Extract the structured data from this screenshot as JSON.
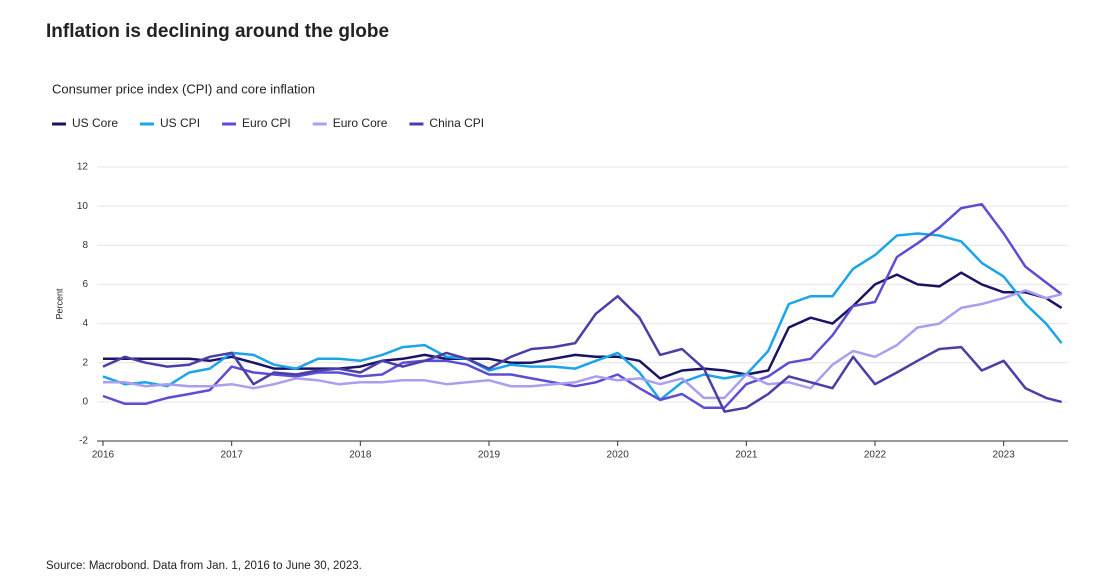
{
  "chart_data": {
    "type": "line",
    "title": "Inflation is declining around the globe",
    "subtitle": "Consumer price index (CPI) and core inflation",
    "y_label": "Percent",
    "source": "Source: Macrobond. Data from Jan. 1, 2016 to June 30, 2023.",
    "x": [
      2016,
      2016.17,
      2016.33,
      2016.5,
      2016.67,
      2016.83,
      2017,
      2017.17,
      2017.33,
      2017.5,
      2017.67,
      2017.83,
      2018,
      2018.17,
      2018.33,
      2018.5,
      2018.67,
      2018.83,
      2019,
      2019.17,
      2019.33,
      2019.5,
      2019.67,
      2019.83,
      2020,
      2020.17,
      2020.33,
      2020.5,
      2020.67,
      2020.83,
      2021,
      2021.17,
      2021.33,
      2021.5,
      2021.67,
      2021.83,
      2022,
      2022.17,
      2022.33,
      2022.5,
      2022.67,
      2022.83,
      2023,
      2023.17,
      2023.33,
      2023.45
    ],
    "xlim": [
      2016,
      2023.5
    ],
    "xticks": [
      2016,
      2017,
      2018,
      2019,
      2020,
      2021,
      2022,
      2023
    ],
    "ylim": [
      -2,
      12
    ],
    "yticks": [
      -2,
      0,
      2,
      4,
      6,
      8,
      10,
      12
    ],
    "grid": true,
    "series": [
      {
        "name": "US Core",
        "color": "#1b1464",
        "values": [
          2.2,
          2.2,
          2.2,
          2.2,
          2.2,
          2.1,
          2.3,
          2.0,
          1.7,
          1.7,
          1.7,
          1.7,
          1.8,
          2.1,
          2.2,
          2.4,
          2.2,
          2.2,
          2.2,
          2.0,
          2.0,
          2.2,
          2.4,
          2.3,
          2.3,
          2.1,
          1.2,
          1.6,
          1.7,
          1.6,
          1.4,
          1.6,
          3.8,
          4.3,
          4.0,
          4.9,
          6.0,
          6.5,
          6.0,
          5.9,
          6.6,
          6.0,
          5.6,
          5.6,
          5.3,
          4.8
        ]
      },
      {
        "name": "US CPI",
        "color": "#1ca4e8",
        "values": [
          1.3,
          0.9,
          1.0,
          0.8,
          1.5,
          1.7,
          2.5,
          2.4,
          1.9,
          1.7,
          2.2,
          2.2,
          2.1,
          2.4,
          2.8,
          2.9,
          2.3,
          2.2,
          1.6,
          1.9,
          1.8,
          1.8,
          1.7,
          2.1,
          2.5,
          1.5,
          0.1,
          1.0,
          1.4,
          1.2,
          1.4,
          2.6,
          5.0,
          5.4,
          5.4,
          6.8,
          7.5,
          8.5,
          8.6,
          8.5,
          8.2,
          7.1,
          6.4,
          5.0,
          4.0,
          3.0
        ]
      },
      {
        "name": "Euro CPI",
        "color": "#5b4ed4",
        "values": [
          0.3,
          -0.1,
          -0.1,
          0.2,
          0.4,
          0.6,
          1.8,
          1.5,
          1.4,
          1.3,
          1.5,
          1.5,
          1.3,
          1.4,
          2.0,
          2.1,
          2.1,
          1.9,
          1.4,
          1.4,
          1.2,
          1.0,
          0.8,
          1.0,
          1.4,
          0.7,
          0.1,
          0.4,
          -0.3,
          -0.3,
          0.9,
          1.3,
          2.0,
          2.2,
          3.4,
          4.9,
          5.1,
          7.4,
          8.1,
          8.9,
          9.9,
          10.1,
          8.6,
          6.9,
          6.1,
          5.5
        ]
      },
      {
        "name": "Euro Core",
        "color": "#a99ef0",
        "values": [
          1.0,
          1.0,
          0.8,
          0.9,
          0.8,
          0.8,
          0.9,
          0.7,
          0.9,
          1.2,
          1.1,
          0.9,
          1.0,
          1.0,
          1.1,
          1.1,
          0.9,
          1.0,
          1.1,
          0.8,
          0.8,
          0.9,
          1.0,
          1.3,
          1.1,
          1.2,
          0.9,
          1.2,
          0.2,
          0.2,
          1.4,
          0.9,
          1.0,
          0.7,
          1.9,
          2.6,
          2.3,
          2.9,
          3.8,
          4.0,
          4.8,
          5.0,
          5.3,
          5.7,
          5.3,
          5.5
        ]
      },
      {
        "name": "China CPI",
        "color": "#4a3fa6",
        "values": [
          1.8,
          2.3,
          2.0,
          1.8,
          1.9,
          2.3,
          2.5,
          0.9,
          1.5,
          1.4,
          1.6,
          1.7,
          1.5,
          2.1,
          1.8,
          2.1,
          2.5,
          2.2,
          1.7,
          2.3,
          2.7,
          2.8,
          3.0,
          4.5,
          5.4,
          4.3,
          2.4,
          2.7,
          1.7,
          -0.5,
          -0.3,
          0.4,
          1.3,
          1.0,
          0.7,
          2.3,
          0.9,
          1.5,
          2.1,
          2.7,
          2.8,
          1.6,
          2.1,
          0.7,
          0.2,
          0.0
        ]
      }
    ]
  }
}
